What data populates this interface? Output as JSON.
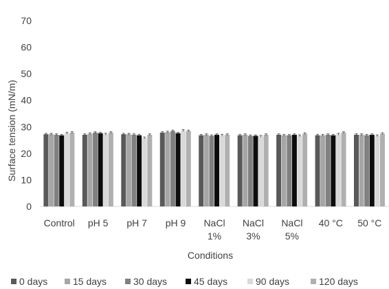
{
  "chart_data": {
    "type": "bar",
    "title": "",
    "xlabel": "Conditions",
    "ylabel": "Surface tension (mN/m)",
    "ylim": [
      0,
      70
    ],
    "yticks": [
      0,
      10,
      20,
      30,
      40,
      50,
      60,
      70
    ],
    "grid": false,
    "legend_position": "bottom",
    "categories": [
      [
        "Control"
      ],
      [
        "pH 5"
      ],
      [
        "pH 7"
      ],
      [
        "pH 9"
      ],
      [
        "NaCl",
        "1%"
      ],
      [
        "NaCl",
        "3%"
      ],
      [
        "NaCl",
        "5%"
      ],
      [
        "40 °C"
      ],
      [
        "50 °C"
      ]
    ],
    "series": [
      {
        "name": "0 days",
        "color": "#595959",
        "values": [
          27.2,
          27.0,
          27.2,
          27.8,
          26.8,
          26.8,
          27.0,
          26.8,
          27.0
        ]
      },
      {
        "name": "15 days",
        "color": "#a6a6a6",
        "values": [
          27.2,
          27.4,
          27.2,
          28.0,
          27.0,
          27.0,
          26.8,
          26.8,
          27.0
        ]
      },
      {
        "name": "30 days",
        "color": "#808080",
        "values": [
          27.0,
          27.8,
          27.0,
          28.4,
          26.6,
          26.6,
          26.8,
          27.0,
          26.8
        ]
      },
      {
        "name": "45 days",
        "color": "#0d0d0d",
        "values": [
          26.8,
          27.6,
          26.8,
          27.6,
          27.0,
          26.6,
          27.0,
          26.8,
          27.0
        ]
      },
      {
        "name": "90 days",
        "color": "#d9d9d9",
        "values": [
          27.6,
          27.2,
          25.8,
          28.6,
          26.8,
          26.4,
          26.6,
          27.2,
          26.6
        ]
      },
      {
        "name": "120 days",
        "color": "#b0b0b0",
        "values": [
          27.8,
          27.8,
          27.0,
          28.4,
          27.0,
          27.0,
          27.4,
          27.8,
          27.4
        ]
      }
    ]
  }
}
